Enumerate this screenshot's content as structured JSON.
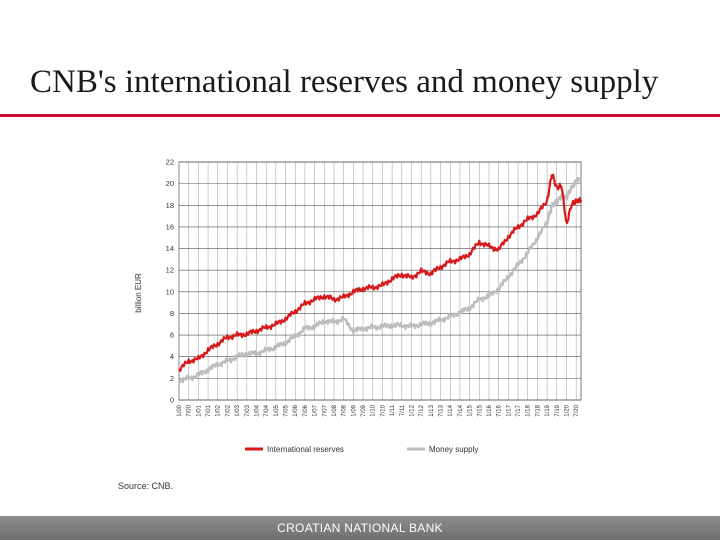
{
  "slide": {
    "title": "CNB's international reserves and money supply",
    "source": "Source: CNB.",
    "footer": "CROATIAN NATIONAL BANK"
  },
  "chart_data": {
    "type": "line",
    "ylabel": "billion EUR",
    "ylim": [
      0,
      22
    ],
    "yticks": [
      0,
      2,
      4,
      6,
      8,
      10,
      12,
      14,
      16,
      18,
      20,
      22
    ],
    "x_range": [
      2000,
      2020.75
    ],
    "x_tick_labels": [
      "1/00",
      "7/00",
      "1/01",
      "7/01",
      "1/02",
      "7/02",
      "1/03",
      "7/03",
      "1/04",
      "7/04",
      "1/05",
      "7/05",
      "1/06",
      "7/06",
      "1/07",
      "7/07",
      "1/08",
      "7/08",
      "1/09",
      "7/09",
      "1/10",
      "7/10",
      "1/11",
      "7/11",
      "1/12",
      "7/12",
      "1/13",
      "7/13",
      "1/14",
      "7/14",
      "1/15",
      "7/15",
      "1/16",
      "7/16",
      "1/17",
      "7/17",
      "1/18",
      "7/18",
      "1/19",
      "7/19",
      "1/20",
      "7/20"
    ],
    "legend_position": "bottom",
    "grid": true,
    "colors": {
      "international_reserves": "#d7191c",
      "money_supply": "#bdbdbd"
    },
    "series": [
      {
        "name": "International reserves",
        "color": "#d7191c",
        "x": [
          2000.0,
          2000.5,
          2001.0,
          2001.5,
          2002.0,
          2002.5,
          2003.0,
          2003.5,
          2004.0,
          2004.5,
          2005.0,
          2005.5,
          2006.0,
          2006.5,
          2007.0,
          2007.5,
          2008.0,
          2008.5,
          2009.0,
          2009.5,
          2010.0,
          2010.5,
          2011.0,
          2011.5,
          2012.0,
          2012.5,
          2013.0,
          2013.5,
          2014.0,
          2014.5,
          2015.0,
          2015.5,
          2016.0,
          2016.5,
          2017.0,
          2017.5,
          2018.0,
          2018.5,
          2019.0,
          2019.25,
          2019.5,
          2019.75,
          2020.0,
          2020.25,
          2020.5,
          2020.75
        ],
        "values": [
          2.8,
          3.6,
          3.8,
          4.6,
          5.2,
          5.8,
          6.0,
          6.1,
          6.4,
          6.7,
          7.0,
          7.5,
          8.2,
          8.9,
          9.3,
          9.6,
          9.3,
          9.5,
          10.0,
          10.3,
          10.4,
          10.6,
          11.2,
          11.6,
          11.3,
          11.9,
          11.7,
          12.3,
          12.8,
          13.0,
          13.5,
          14.6,
          14.2,
          13.9,
          15.1,
          16.0,
          16.7,
          17.2,
          18.4,
          20.9,
          19.6,
          19.8,
          16.2,
          18.0,
          18.4,
          18.5
        ]
      },
      {
        "name": "Money supply",
        "color": "#bdbdbd",
        "x": [
          2000.0,
          2000.5,
          2001.0,
          2001.5,
          2002.0,
          2002.5,
          2003.0,
          2003.5,
          2004.0,
          2004.5,
          2005.0,
          2005.5,
          2006.0,
          2006.5,
          2007.0,
          2007.5,
          2008.0,
          2008.5,
          2009.0,
          2009.5,
          2010.0,
          2010.5,
          2011.0,
          2011.5,
          2012.0,
          2012.5,
          2013.0,
          2013.5,
          2014.0,
          2014.5,
          2015.0,
          2015.5,
          2016.0,
          2016.5,
          2017.0,
          2017.5,
          2018.0,
          2018.5,
          2019.0,
          2019.25,
          2019.5,
          2019.75,
          2020.0,
          2020.25,
          2020.5,
          2020.75
        ],
        "values": [
          1.8,
          2.0,
          2.3,
          2.8,
          3.3,
          3.6,
          4.0,
          4.3,
          4.3,
          4.6,
          4.9,
          5.3,
          5.9,
          6.6,
          6.8,
          7.3,
          7.2,
          7.5,
          6.4,
          6.6,
          6.7,
          6.8,
          6.9,
          6.9,
          6.8,
          7.0,
          7.1,
          7.4,
          7.7,
          8.1,
          8.5,
          9.3,
          9.6,
          10.3,
          11.4,
          12.5,
          13.6,
          15.0,
          16.4,
          18.0,
          18.3,
          18.9,
          18.7,
          19.6,
          20.2,
          20.5
        ]
      }
    ]
  }
}
